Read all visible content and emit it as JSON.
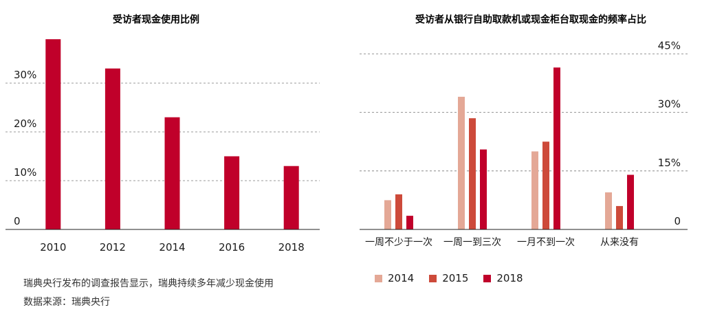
{
  "chart_data": [
    {
      "type": "bar",
      "title": "受访者现金使用比例",
      "categories": [
        "2010",
        "2012",
        "2014",
        "2016",
        "2018"
      ],
      "values": [
        39,
        33,
        23,
        15,
        13
      ],
      "yticks": [
        "0",
        "10%",
        "20%",
        "30%"
      ],
      "ytick_values": [
        0,
        10,
        20,
        30
      ],
      "ylim": [
        0,
        40
      ],
      "grid": true,
      "color": "#c0002a"
    },
    {
      "type": "bar",
      "title": "受访者从银行自助取款机或现金柜台取现金的频率占比",
      "categories": [
        "一周不少于一次",
        "一周一到三次",
        "一月不到一次",
        "从来没有"
      ],
      "series": [
        {
          "name": "2014",
          "values": [
            7.5,
            34,
            20,
            9.5
          ],
          "color": "#e4a896"
        },
        {
          "name": "2015",
          "values": [
            9,
            28.5,
            22.5,
            6
          ],
          "color": "#cd4a3a"
        },
        {
          "name": "2018",
          "values": [
            3.5,
            20.5,
            41.5,
            14
          ],
          "color": "#c0002a"
        }
      ],
      "yticks": [
        "0",
        "15%",
        "30%",
        "45%"
      ],
      "ytick_values": [
        0,
        15,
        30,
        45
      ],
      "ylim": [
        0,
        50
      ],
      "grid": true,
      "legend_position": "bottom"
    }
  ],
  "notes": {
    "line1": "瑞典央行发布的调查报告显示，瑞典持续多年减少现金使用",
    "line2": "数据来源：瑞典央行"
  }
}
